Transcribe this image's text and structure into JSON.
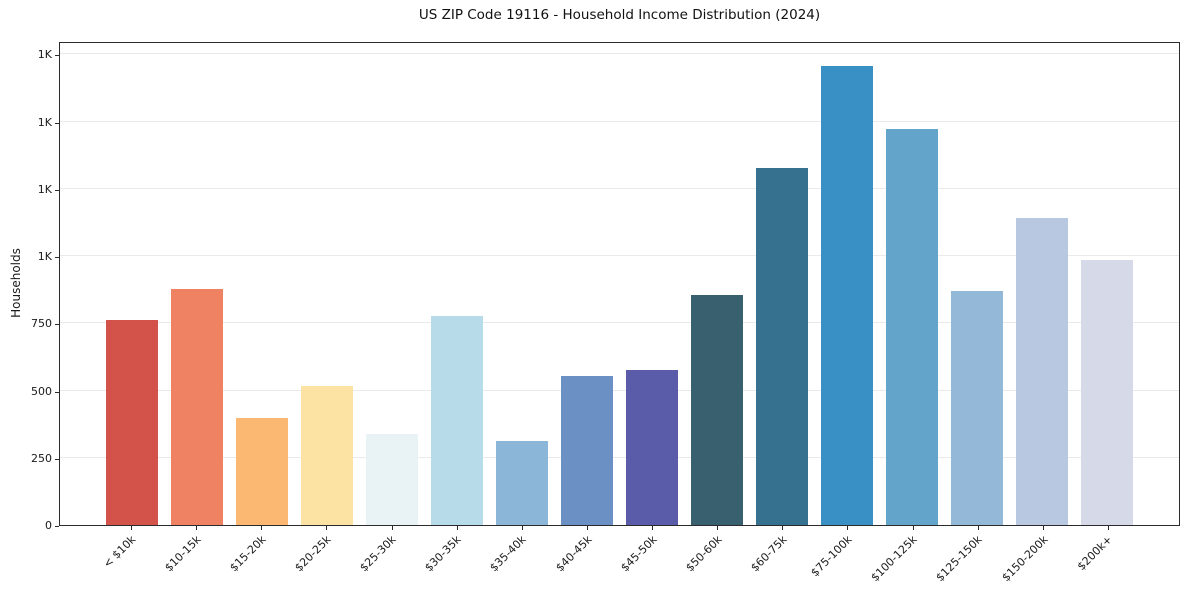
{
  "chart_data": {
    "type": "bar",
    "title": "US ZIP Code 19116 - Household Income Distribution (2024)",
    "xlabel": "",
    "ylabel": "Households",
    "ylim": [
      0,
      1800
    ],
    "grid": "horizontal",
    "legend": "none",
    "background": "#ffffff",
    "frame_color": "#2b2b2b",
    "grid_color": "#e9e9ee",
    "yticks": [
      {
        "value": 0,
        "label": "0"
      },
      {
        "value": 250,
        "label": "250"
      },
      {
        "value": 500,
        "label": "500"
      },
      {
        "value": 750,
        "label": "750"
      },
      {
        "value": 1000,
        "label": "1K"
      },
      {
        "value": 1250,
        "label": "1K"
      },
      {
        "value": 1500,
        "label": "1K"
      },
      {
        "value": 1750,
        "label": "1K"
      }
    ],
    "categories": [
      "< $10k",
      "$10-15k",
      "$15-20k",
      "$20-25k",
      "$25-30k",
      "$30-35k",
      "$35-40k",
      "$40-45k",
      "$45-50k",
      "$50-60k",
      "$60-75k",
      "$75-100k",
      "$100-125k",
      "$125-150k",
      "$150-200k",
      "$200k+"
    ],
    "values": [
      765,
      880,
      400,
      520,
      340,
      780,
      315,
      555,
      580,
      860,
      1335,
      1715,
      1480,
      875,
      1145,
      990
    ],
    "bar_colors": [
      "#d3524a",
      "#ef8262",
      "#fab873",
      "#fde3a3",
      "#e9f3f5",
      "#b7dbe8",
      "#8cb6d8",
      "#6b90c4",
      "#5a5caa",
      "#38606e",
      "#36718f",
      "#3890c4",
      "#62a4ca",
      "#94b8d8",
      "#b7c8e0",
      "#d6d9e8"
    ]
  }
}
